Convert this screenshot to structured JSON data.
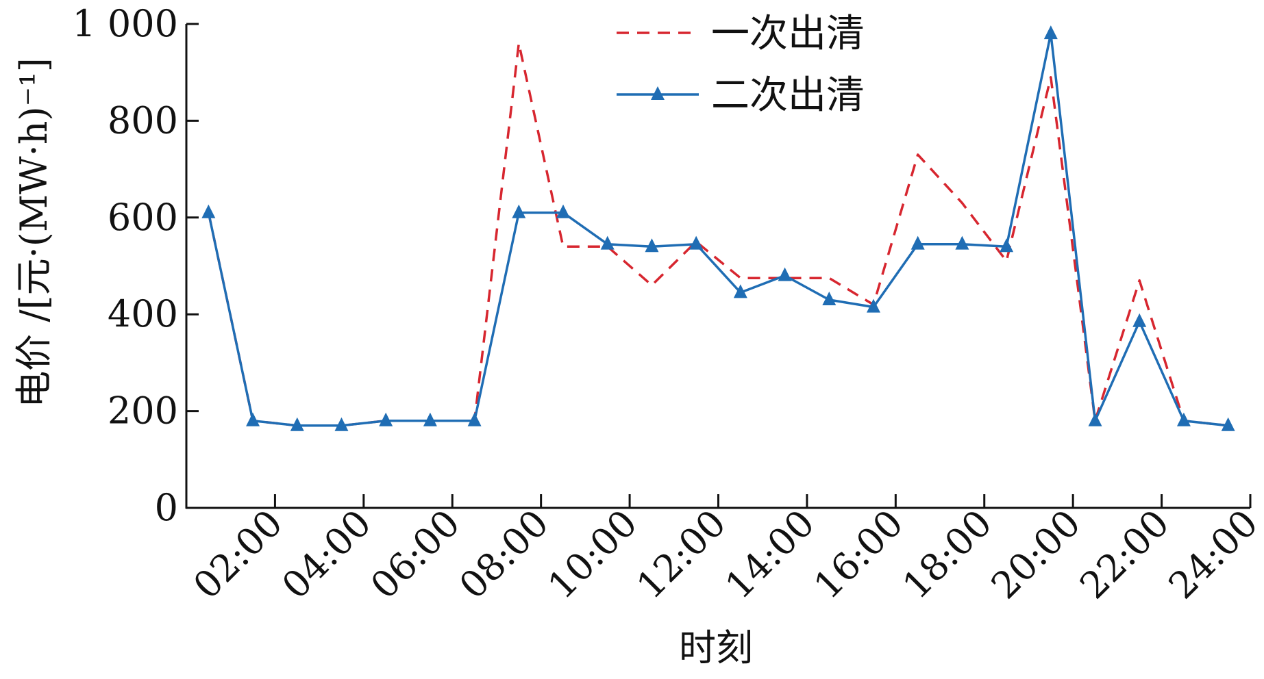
{
  "chart_data": {
    "type": "line",
    "title": "",
    "xlabel": "时刻",
    "ylabel": "电价 /[元·(MW·h)⁻¹]",
    "ylim": [
      0,
      1000
    ],
    "yticks": [
      0,
      200,
      400,
      600,
      800,
      1000
    ],
    "ytick_labels": [
      "0",
      "200",
      "400",
      "600",
      "800",
      "1 000"
    ],
    "xlim": [
      0,
      24
    ],
    "xticks": [
      2,
      4,
      6,
      8,
      10,
      12,
      14,
      16,
      18,
      20,
      22,
      24
    ],
    "xtick_labels": [
      "02:00",
      "04:00",
      "06:00",
      "08:00",
      "10:00",
      "12:00",
      "14:00",
      "16:00",
      "18:00",
      "20:00",
      "22:00",
      "24:00"
    ],
    "x": [
      0.5,
      1.5,
      2.5,
      3.5,
      4.5,
      5.5,
      6.5,
      7.5,
      8.5,
      9.5,
      10.5,
      11.5,
      12.5,
      13.5,
      14.5,
      15.5,
      16.5,
      17.5,
      18.5,
      19.5,
      20.5,
      21.5,
      22.5,
      23.5
    ],
    "legend_position": "top-center",
    "grid": false,
    "series": [
      {
        "name": "一次出清",
        "color": "#d7262f",
        "style": "dashed",
        "marker": "none",
        "values": [
          610,
          180,
          170,
          170,
          180,
          180,
          180,
          960,
          540,
          540,
          460,
          550,
          475,
          475,
          475,
          420,
          730,
          630,
          510,
          890,
          180,
          470,
          180,
          170
        ]
      },
      {
        "name": "二次出清",
        "color": "#1f6db4",
        "style": "solid",
        "marker": "triangle",
        "values": [
          610,
          180,
          170,
          170,
          180,
          180,
          180,
          610,
          610,
          545,
          540,
          545,
          445,
          480,
          430,
          415,
          545,
          545,
          540,
          980,
          180,
          385,
          180,
          170
        ]
      }
    ]
  }
}
